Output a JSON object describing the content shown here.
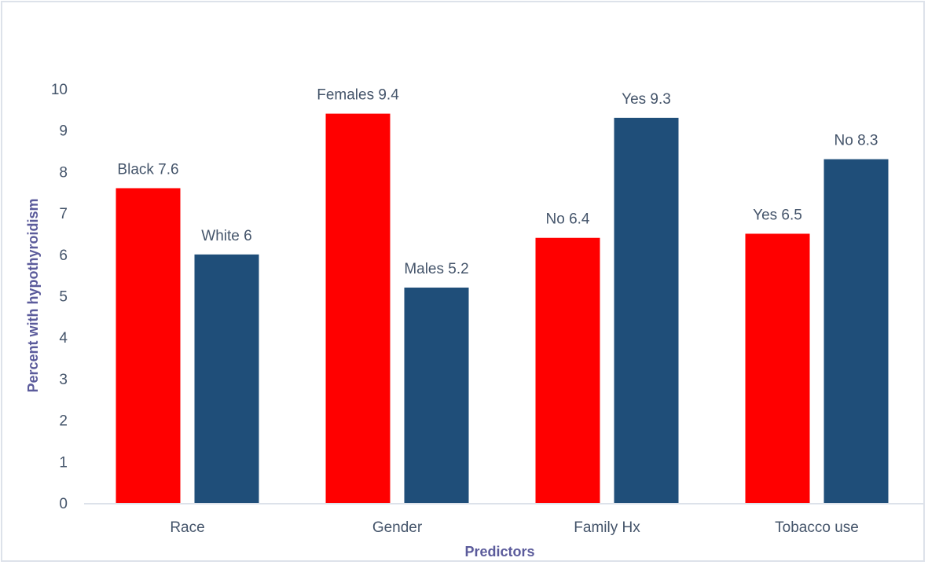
{
  "chart_data": {
    "type": "bar",
    "title": "",
    "xlabel": "Predictors",
    "ylabel": "Percent with hypothyroidism",
    "ylim": [
      0,
      10
    ],
    "yticks": [
      0,
      1,
      2,
      3,
      4,
      5,
      6,
      7,
      8,
      9,
      10
    ],
    "categories": [
      "Race",
      "Gender",
      "Family Hx",
      "Tobacco use"
    ],
    "grid": false,
    "series": [
      {
        "name": "first",
        "color": "#ff0000",
        "values": [
          7.6,
          9.4,
          6.4,
          6.5
        ],
        "labels": [
          "Black 7.6",
          "Females  9.4",
          "No 6.4",
          "Yes 6.5"
        ]
      },
      {
        "name": "second",
        "color": "#1f4e79",
        "values": [
          6,
          5.2,
          9.3,
          8.3
        ],
        "labels": [
          "White 6",
          "Males  5.2",
          "Yes 9.3",
          "No 8.3"
        ]
      }
    ]
  }
}
